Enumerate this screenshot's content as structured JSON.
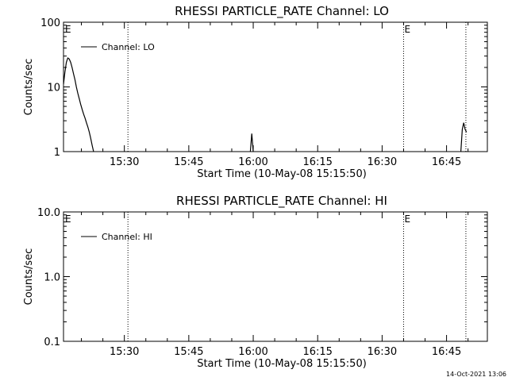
{
  "chart_data": [
    {
      "type": "line",
      "title": "RHESSI PARTICLE_RATE Channel: LO",
      "xlabel": "Start Time (10-May-08 15:15:50)",
      "ylabel": "Counts/sec",
      "yscale": "log",
      "ylim": [
        1,
        100
      ],
      "xlim": [
        "15:15:50",
        "16:54:30"
      ],
      "ytick_labels": [
        "1",
        "10",
        "100"
      ],
      "xtick_labels": [
        "15:30",
        "15:45",
        "16:00",
        "16:15",
        "16:30",
        "16:45"
      ],
      "legend": {
        "label": "Channel: LO",
        "position": "top-left"
      },
      "event_markers": [
        {
          "time": "15:30:50",
          "label": ""
        },
        {
          "time": "16:35:00",
          "label": "E"
        },
        {
          "time": "16:49:30",
          "label": ""
        }
      ],
      "start_marker_label": "E",
      "series": [
        {
          "name": "Channel: LO",
          "segments": [
            {
              "x": [
                "15:15:50",
                "15:16:10",
                "15:16:30",
                "15:16:50",
                "15:17:10",
                "15:17:30",
                "15:17:50",
                "15:18:10",
                "15:18:30",
                "15:18:50",
                "15:19:10",
                "15:19:30",
                "15:19:50",
                "15:20:10",
                "15:20:30",
                "15:20:50",
                "15:21:10",
                "15:21:30",
                "15:21:50",
                "15:22:10",
                "15:22:30",
                "15:22:50"
              ],
              "y": [
                11,
                17,
                24,
                28,
                27,
                24,
                20,
                16,
                13,
                10,
                8,
                6.6,
                5.4,
                4.5,
                3.8,
                3.3,
                2.8,
                2.4,
                2.0,
                1.6,
                1.25,
                1.0
              ]
            },
            {
              "x": [
                "15:59:20",
                "15:59:40",
                "16:00:00"
              ],
              "y": [
                1.0,
                1.9,
                1.0
              ]
            },
            {
              "x": [
                "16:48:20",
                "16:48:40",
                "16:49:00",
                "16:49:20",
                "16:49:40"
              ],
              "y": [
                1.0,
                2.2,
                2.8,
                2.2,
                2.0
              ]
            }
          ]
        }
      ]
    },
    {
      "type": "line",
      "title": "RHESSI PARTICLE_RATE Channel: HI",
      "xlabel": "Start Time (10-May-08 15:15:50)",
      "ylabel": "Counts/sec",
      "yscale": "log",
      "ylim": [
        0.1,
        10
      ],
      "xlim": [
        "15:15:50",
        "16:54:30"
      ],
      "ytick_labels": [
        "0.1",
        "1.0",
        "10.0"
      ],
      "xtick_labels": [
        "15:30",
        "15:45",
        "16:00",
        "16:15",
        "16:30",
        "16:45"
      ],
      "legend": {
        "label": "Channel: HI",
        "position": "top-left"
      },
      "event_markers": [
        {
          "time": "15:30:50",
          "label": ""
        },
        {
          "time": "16:35:00",
          "label": "E"
        },
        {
          "time": "16:49:30",
          "label": ""
        }
      ],
      "start_marker_label": "E",
      "series": [
        {
          "name": "Channel: HI",
          "segments": []
        }
      ]
    }
  ],
  "footer": {
    "timestamp": "14-Oct-2021 13:06"
  }
}
